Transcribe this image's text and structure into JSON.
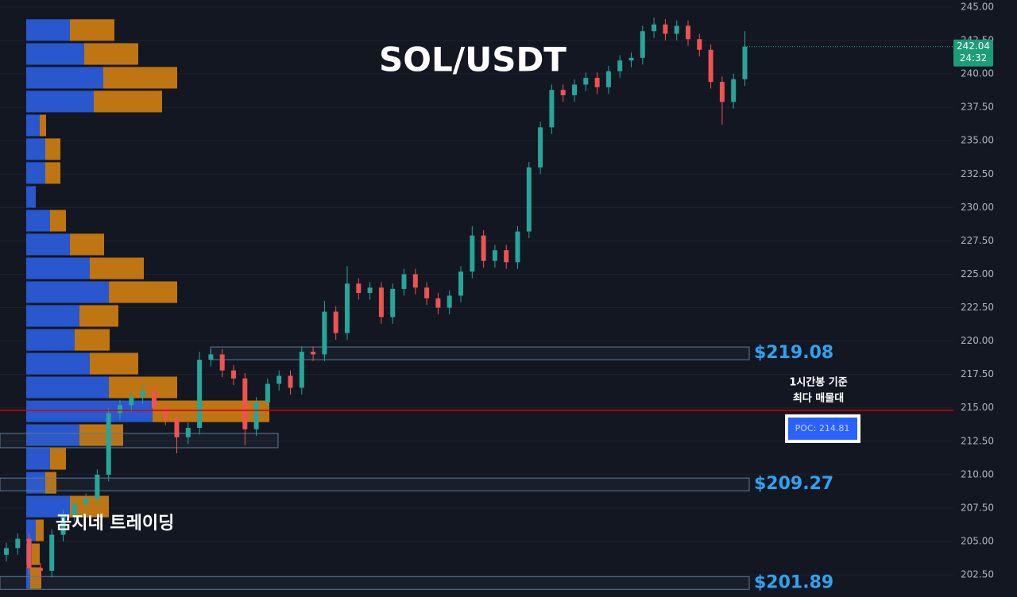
{
  "chart_data": {
    "type": "candlestick",
    "title": "SOL/USDT",
    "watermark": "곰지네 트레이딩",
    "ylim": [
      200.84,
      245.53
    ],
    "yticks": [
      {
        "value": 202.5,
        "label": "202.50"
      },
      {
        "value": 205,
        "label": "205.00"
      },
      {
        "value": 207.5,
        "label": "207.50"
      },
      {
        "value": 210,
        "label": "210.00"
      },
      {
        "value": 212.5,
        "label": "212.50"
      },
      {
        "value": 215,
        "label": "215.00"
      },
      {
        "value": 217.5,
        "label": "217.50"
      },
      {
        "value": 220,
        "label": "220.00"
      },
      {
        "value": 222.5,
        "label": "222.50"
      },
      {
        "value": 225,
        "label": "225.00"
      },
      {
        "value": 227.5,
        "label": "227.50"
      },
      {
        "value": 230,
        "label": "230.00"
      },
      {
        "value": 232.5,
        "label": "232.50"
      },
      {
        "value": 235,
        "label": "235.00"
      },
      {
        "value": 237.5,
        "label": "237.50"
      },
      {
        "value": 240,
        "label": "240.00"
      },
      {
        "value": 242.5,
        "label": "242.50"
      },
      {
        "value": 245,
        "label": "245.00"
      }
    ],
    "grid": true,
    "up_color": "#26a69a",
    "down_color": "#ef5350",
    "open": [
      204.0,
      204.5,
      205.2,
      203.0,
      202.8,
      205.5,
      207.0,
      207.8,
      208.2,
      210.0,
      214.6,
      215.2,
      215.8,
      216.3,
      215.0,
      214.2,
      212.8,
      213.5,
      218.6,
      219.0,
      217.8,
      217.2,
      213.4,
      215.4,
      216.8,
      217.4,
      216.5,
      219.2,
      219.0,
      222.2,
      220.6,
      224.3,
      223.6,
      224.0,
      221.8,
      223.9,
      225.0,
      224.0,
      223.2,
      222.5,
      223.4,
      225.2,
      227.9,
      226.0,
      226.8,
      225.9,
      228.2,
      233.0,
      236.0,
      238.8,
      238.4,
      239.2,
      239.7,
      239.0,
      240.2,
      241.0,
      241.2,
      243.2,
      243.7,
      243.0,
      243.6,
      242.6,
      241.8,
      239.4,
      237.9,
      239.6
    ],
    "high": [
      204.9,
      205.6,
      205.6,
      203.4,
      205.9,
      207.4,
      208.2,
      208.6,
      210.4,
      215.0,
      215.6,
      216.2,
      216.8,
      216.7,
      215.4,
      214.6,
      213.9,
      219.2,
      219.4,
      219.4,
      218.2,
      217.6,
      215.8,
      217.2,
      217.8,
      217.8,
      219.6,
      219.6,
      223.0,
      222.6,
      225.6,
      224.7,
      224.4,
      224.4,
      224.3,
      225.4,
      225.4,
      224.4,
      223.6,
      223.8,
      225.6,
      228.6,
      228.3,
      227.2,
      227.2,
      228.6,
      233.4,
      236.4,
      239.2,
      239.2,
      239.6,
      240.1,
      240.1,
      240.6,
      241.4,
      241.6,
      243.6,
      244.2,
      244.1,
      244.0,
      244.0,
      243.0,
      242.2,
      239.8,
      240.0,
      243.2
    ],
    "low": [
      203.5,
      204.0,
      202.5,
      201.8,
      202.3,
      205.0,
      206.5,
      207.3,
      207.7,
      209.5,
      214.1,
      214.7,
      215.3,
      214.5,
      213.7,
      211.6,
      212.3,
      213.0,
      218.1,
      217.3,
      216.7,
      212.2,
      212.9,
      214.9,
      216.3,
      216.0,
      216.0,
      218.5,
      218.5,
      220.1,
      220.1,
      223.1,
      223.1,
      221.3,
      221.3,
      223.4,
      223.5,
      222.7,
      222.0,
      222.0,
      222.9,
      224.7,
      225.5,
      225.5,
      225.4,
      225.4,
      227.7,
      232.5,
      235.5,
      237.9,
      237.9,
      238.7,
      238.5,
      238.5,
      239.7,
      240.5,
      240.7,
      242.7,
      242.5,
      242.5,
      242.1,
      241.3,
      238.9,
      236.2,
      237.4,
      239.1
    ],
    "close": [
      204.5,
      205.2,
      203.0,
      202.8,
      205.5,
      207.0,
      207.8,
      208.2,
      210.0,
      214.6,
      215.2,
      215.8,
      216.3,
      215.0,
      214.2,
      212.8,
      213.5,
      218.6,
      219.0,
      217.8,
      217.2,
      213.4,
      215.4,
      216.8,
      217.4,
      216.5,
      219.2,
      219.0,
      222.2,
      220.6,
      224.3,
      223.6,
      224.0,
      221.8,
      223.9,
      225.0,
      224.0,
      223.2,
      222.5,
      223.4,
      225.2,
      227.9,
      226.0,
      226.8,
      225.9,
      228.2,
      233.0,
      236.0,
      238.8,
      238.4,
      239.2,
      239.7,
      239.0,
      240.2,
      241.0,
      241.2,
      243.2,
      243.7,
      243.0,
      243.6,
      242.6,
      241.8,
      239.4,
      237.9,
      239.6,
      242.04
    ],
    "last_price": {
      "value": 242.04,
      "label": "242.04",
      "countdown": "24:32"
    },
    "profile": {
      "prices": [
        243.28,
        241.49,
        239.71,
        237.93,
        236.14,
        234.36,
        232.58,
        230.79,
        229.01,
        227.23,
        225.44,
        223.66,
        221.88,
        220.09,
        218.31,
        216.53,
        214.74,
        212.96,
        211.18,
        209.39,
        207.61,
        205.83,
        204.04,
        202.26
      ],
      "buy": [
        55,
        73,
        97,
        85,
        17,
        24,
        24,
        12,
        30,
        55,
        80,
        104,
        67,
        61,
        80,
        104,
        159,
        67,
        30,
        24,
        55,
        12,
        7,
        5
      ],
      "sell": [
        56,
        68,
        93,
        86,
        8,
        19,
        19,
        0,
        20,
        43,
        68,
        86,
        49,
        44,
        61,
        86,
        147,
        55,
        20,
        14,
        49,
        10,
        10,
        14
      ],
      "buy_color": "#2a5bd7",
      "sell_color": "#c77a12"
    },
    "levels": {
      "values": [
        219.08,
        209.27,
        201.89
      ],
      "value_labels": [
        "$219.08",
        "$209.27",
        "$201.89"
      ],
      "color": "#2ea3f2"
    },
    "extra_zones": [
      212.55
    ],
    "poc": {
      "value": 214.81,
      "label": "POC: 214.81",
      "color": "#d50000"
    },
    "note_lines": [
      "1시간봉 기준",
      "최다 매물대"
    ]
  }
}
